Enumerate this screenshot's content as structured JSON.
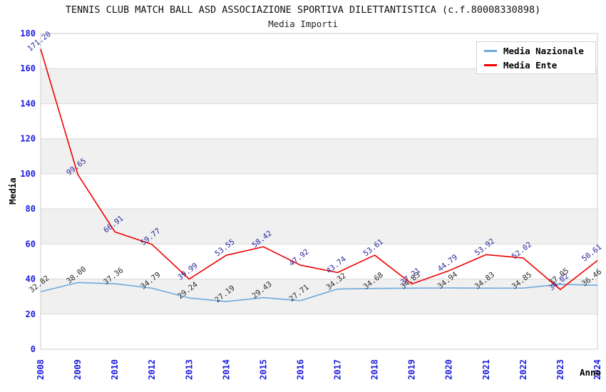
{
  "header": {
    "title": "TENNIS CLUB MATCH BALL ASD ASSOCIAZIONE SPORTIVA DILETTANTISTICA (c.f.80008330898)",
    "subtitle": "Media Importi"
  },
  "chart_data": {
    "type": "line",
    "x": [
      "2008",
      "2009",
      "2010",
      "2012",
      "2013",
      "2014",
      "2015",
      "2016",
      "2017",
      "2018",
      "2019",
      "2020",
      "2021",
      "2022",
      "2023",
      "2024"
    ],
    "series": [
      {
        "name": "Media Nazionale",
        "color": "#6FA8DC",
        "label_color": "#2b2b2b",
        "values": [
          32.82,
          38.0,
          37.36,
          34.79,
          29.24,
          27.19,
          29.43,
          27.71,
          34.32,
          34.68,
          34.83,
          34.94,
          34.83,
          34.85,
          37.05,
          36.46
        ]
      },
      {
        "name": "Media Ente",
        "color": "#EE0000",
        "label_color": "#28289B",
        "values": [
          171.2,
          99.65,
          66.91,
          59.77,
          39.99,
          53.55,
          58.42,
          47.92,
          43.74,
          53.61,
          37.21,
          44.79,
          53.92,
          52.02,
          34.02,
          50.61
        ]
      }
    ],
    "xlabel": "Anno",
    "ylabel": "Media",
    "ylim": [
      0,
      180
    ],
    "ytick_step": 20,
    "grid": true,
    "legend_position": "top-right",
    "colors": {
      "tick_label": "#1C1CDD",
      "grid_band": "#f0f0f0",
      "gridline": "#d9d9d9",
      "plot_border": "#cccccc"
    }
  }
}
